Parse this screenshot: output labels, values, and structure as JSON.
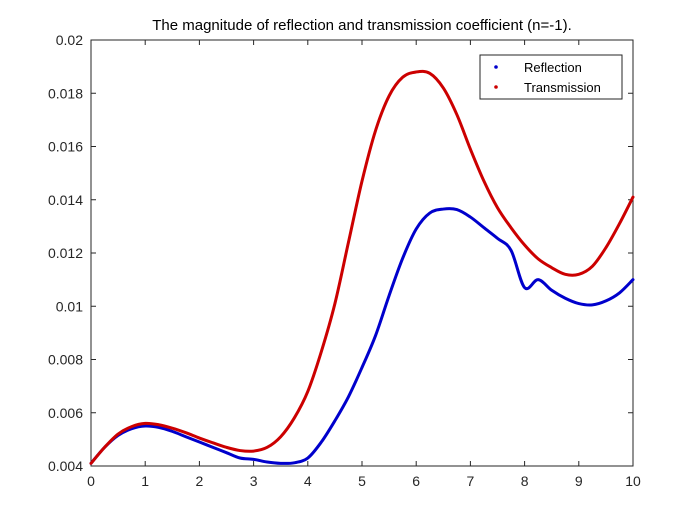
{
  "chart_data": {
    "type": "line",
    "title": "The magnitude of reflection and transmission coefficient (n=-1).",
    "xlabel": "",
    "ylabel": "",
    "xlim": [
      0,
      10
    ],
    "ylim": [
      0.004,
      0.02
    ],
    "xticks": [
      0,
      1,
      2,
      3,
      4,
      5,
      6,
      7,
      8,
      9,
      10
    ],
    "xtick_labels": [
      "0",
      "1",
      "2",
      "3",
      "4",
      "5",
      "6",
      "7",
      "8",
      "9",
      "10"
    ],
    "yticks": [
      0.004,
      0.006,
      0.008,
      0.01,
      0.012,
      0.014,
      0.016,
      0.018,
      0.02
    ],
    "ytick_labels": [
      "0.004",
      "0.006",
      "0.008",
      "0.01",
      "0.012",
      "0.014",
      "0.016",
      "0.018",
      "0.02"
    ],
    "grid": false,
    "legend_position": "top-right",
    "x": [
      0,
      0.25,
      0.5,
      0.75,
      1,
      1.25,
      1.5,
      1.75,
      2,
      2.25,
      2.5,
      2.75,
      3,
      3.25,
      3.5,
      3.75,
      4,
      4.25,
      4.5,
      4.75,
      5,
      5.25,
      5.5,
      5.75,
      6,
      6.25,
      6.5,
      6.75,
      7,
      7.25,
      7.5,
      7.75,
      8,
      8.25,
      8.5,
      8.75,
      9,
      9.25,
      9.5,
      9.75,
      10
    ],
    "series": [
      {
        "name": "Reflection",
        "color": "#0000cc",
        "values": [
          0.0041,
          0.0047,
          0.00515,
          0.0054,
          0.0055,
          0.00545,
          0.0053,
          0.0051,
          0.0049,
          0.0047,
          0.0045,
          0.0043,
          0.00425,
          0.00415,
          0.0041,
          0.00412,
          0.0043,
          0.0049,
          0.0057,
          0.0066,
          0.0077,
          0.0089,
          0.0104,
          0.0118,
          0.0129,
          0.0135,
          0.01365,
          0.01363,
          0.01335,
          0.01295,
          0.01255,
          0.0121,
          0.0107,
          0.011,
          0.0106,
          0.0103,
          0.0101,
          0.01005,
          0.0102,
          0.0105,
          0.011
        ]
      },
      {
        "name": "Transmission",
        "color": "#cc0000",
        "values": [
          0.0041,
          0.0047,
          0.0052,
          0.00548,
          0.0056,
          0.00555,
          0.00542,
          0.00525,
          0.00505,
          0.00487,
          0.0047,
          0.00458,
          0.00456,
          0.0047,
          0.0051,
          0.0058,
          0.0068,
          0.0083,
          0.0101,
          0.0124,
          0.0147,
          0.0166,
          0.0179,
          0.0186,
          0.0188,
          0.01875,
          0.0182,
          0.0172,
          0.0159,
          0.0147,
          0.0137,
          0.01295,
          0.0123,
          0.01178,
          0.01145,
          0.0112,
          0.0112,
          0.0115,
          0.0122,
          0.0131,
          0.0141
        ]
      }
    ]
  }
}
